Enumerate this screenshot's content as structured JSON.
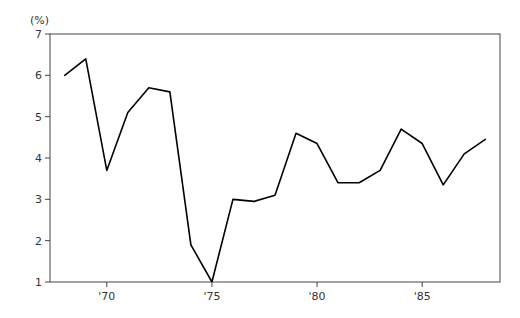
{
  "chart_data": {
    "type": "line",
    "x": [
      1968,
      1969,
      1970,
      1971,
      1972,
      1973,
      1974,
      1975,
      1976,
      1977,
      1978,
      1979,
      1980,
      1981,
      1982,
      1983,
      1984,
      1985,
      1986,
      1987,
      1988
    ],
    "values": [
      6.0,
      6.4,
      3.7,
      5.1,
      5.7,
      5.6,
      1.9,
      1.0,
      3.0,
      2.95,
      3.1,
      4.6,
      4.35,
      3.4,
      3.4,
      3.7,
      4.7,
      4.35,
      3.35,
      4.1,
      4.45
    ],
    "color": "#000000",
    "xlim": [
      1967.3,
      1988.7
    ],
    "xticks": [
      {
        "value": 1970,
        "label": "'70"
      },
      {
        "value": 1975,
        "label": "'75"
      },
      {
        "value": 1980,
        "label": "'80"
      },
      {
        "value": 1985,
        "label": "'85"
      }
    ],
    "ylim": [
      1,
      7
    ],
    "yticks": [
      1,
      2,
      3,
      4,
      5,
      6,
      7
    ],
    "ylabel": "(%)",
    "grid": false
  }
}
